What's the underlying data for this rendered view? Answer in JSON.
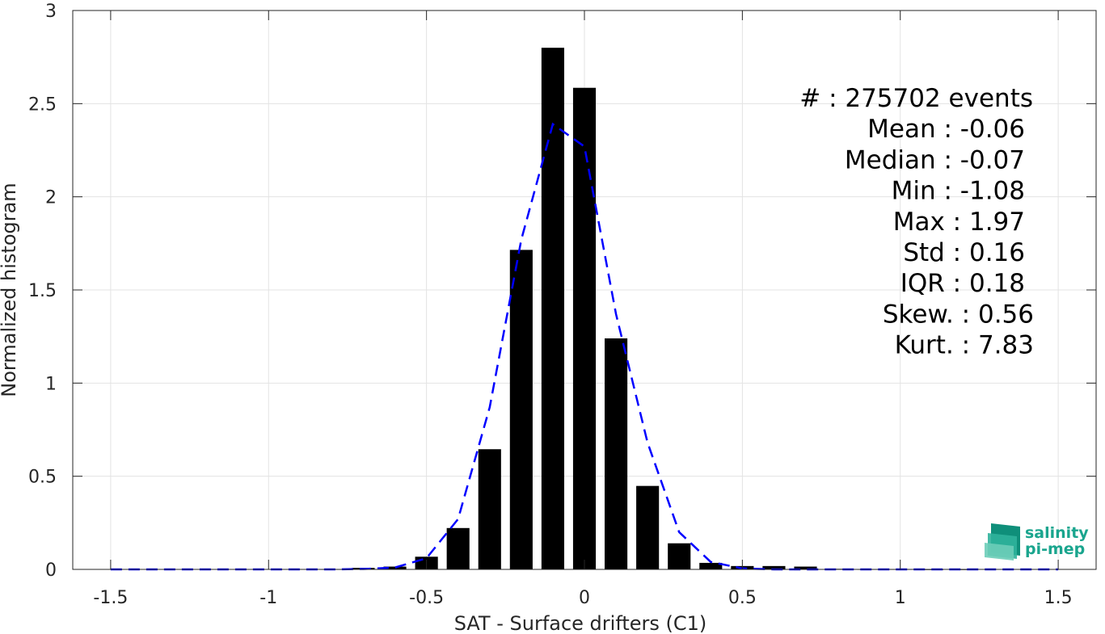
{
  "chart_data": {
    "type": "bar",
    "xlabel": "SAT - Surface drifters (C1)",
    "ylabel": "Normalized histogram",
    "xlim": [
      -1.62,
      1.62
    ],
    "ylim": [
      0,
      3
    ],
    "xticks": [
      -1.5,
      -1,
      -0.5,
      0,
      0.5,
      1,
      1.5
    ],
    "xtick_labels": [
      "-1.5",
      "-1",
      "-0.5",
      "0",
      "0.5",
      "1",
      "1.5"
    ],
    "yticks": [
      0,
      0.5,
      1,
      1.5,
      2,
      2.5,
      3
    ],
    "ytick_labels": [
      "0",
      "0.5",
      "1",
      "1.5",
      "2",
      "2.5",
      "3"
    ],
    "grid": true,
    "bar_width": 0.072,
    "bar_color": "#000000",
    "bars": {
      "x": [
        -1.5,
        -1.4,
        -1.3,
        -1.2,
        -1.1,
        -1.0,
        -0.9,
        -0.8,
        -0.7,
        -0.6,
        -0.5,
        -0.4,
        -0.3,
        -0.2,
        -0.1,
        0.0,
        0.1,
        0.2,
        0.3,
        0.4,
        0.5,
        0.6,
        0.7,
        0.8,
        0.9,
        1.0,
        1.1,
        1.2,
        1.3,
        1.4,
        1.5
      ],
      "values": [
        0,
        0,
        0,
        0,
        0,
        0,
        0,
        0.002,
        0.008,
        0.015,
        0.068,
        0.222,
        0.645,
        1.715,
        2.8,
        2.585,
        1.24,
        0.448,
        0.14,
        0.035,
        0.018,
        0.018,
        0.015,
        0.003,
        0.002,
        0.002,
        0.001,
        0.001,
        0,
        0,
        0
      ]
    },
    "fit_line": {
      "style": "dashed",
      "color": "#0000ff",
      "x": [
        -1.5,
        -1.4,
        -1.3,
        -1.2,
        -1.1,
        -1.0,
        -0.9,
        -0.8,
        -0.7,
        -0.6,
        -0.5,
        -0.4,
        -0.3,
        -0.2,
        -0.1,
        0.0,
        0.1,
        0.2,
        0.3,
        0.4,
        0.5,
        0.6,
        0.7,
        0.8,
        0.9,
        1.0,
        1.1,
        1.2,
        1.3,
        1.4,
        1.5
      ],
      "values": [
        0,
        0,
        0,
        0,
        0,
        0,
        0,
        0,
        0.002,
        0.01,
        0.06,
        0.27,
        0.87,
        1.77,
        2.39,
        2.27,
        1.37,
        0.68,
        0.2,
        0.04,
        0.005,
        0,
        0,
        0,
        0,
        0,
        0,
        0,
        0,
        0,
        0
      ]
    },
    "stats": [
      {
        "label": "#  : 275702 events"
      },
      {
        "label": "Mean : -0.06"
      },
      {
        "label": "Median : -0.07"
      },
      {
        "label": "Min : -1.08"
      },
      {
        "label": "Max : 1.97"
      },
      {
        "label": "Std : 0.16"
      },
      {
        "label": "IQR : 0.18"
      },
      {
        "label": "Skew. : 0.56"
      },
      {
        "label": "Kurt. : 7.83"
      }
    ]
  },
  "logo": {
    "line1": "salinity",
    "line2": "pi-mep",
    "color": "#1aa58e"
  }
}
